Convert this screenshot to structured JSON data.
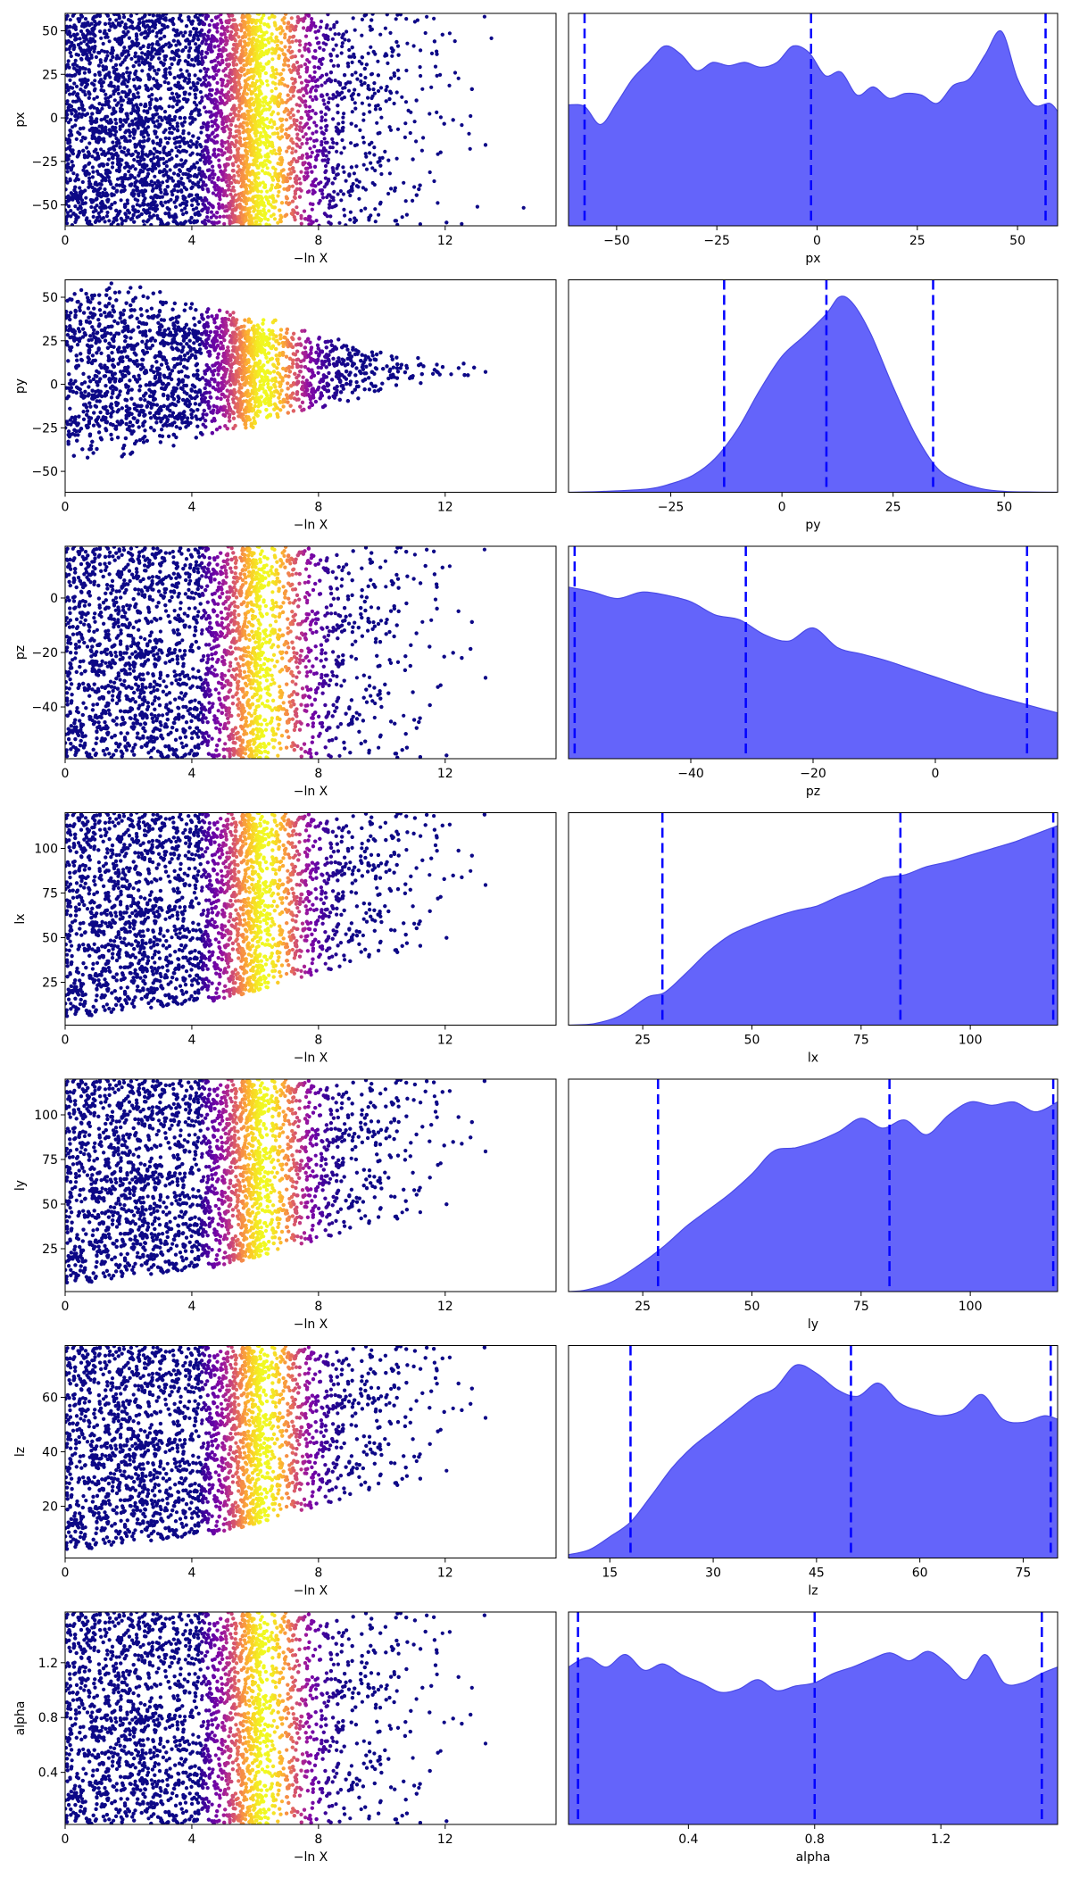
{
  "figure": {
    "colors": {
      "kde_fill": "#6464fa",
      "kde_line": "#4a4ae6",
      "quantile_line": "#0000ff",
      "scatter_low": "#0d0887",
      "scatter_high": "#f0f921"
    },
    "colormap": "plasma"
  },
  "chart_data": [
    {
      "type": "scatter",
      "param": "px",
      "xlabel": "−ln X",
      "ylabel": "px",
      "xlim": [
        0,
        15.5
      ],
      "ylim": [
        -62,
        60
      ],
      "xticks": [
        0,
        4,
        8,
        12
      ],
      "yticks": [
        -50,
        -25,
        0,
        25,
        50
      ],
      "shape": "uniform",
      "grid": false
    },
    {
      "type": "area",
      "param": "px",
      "xlabel": "px",
      "xlim": [
        -62,
        60
      ],
      "xticks": [
        -50,
        -25,
        0,
        25,
        50
      ],
      "ylim": [
        0,
        1.3
      ],
      "x": [
        -62,
        -58,
        -54,
        -50,
        -46,
        -42,
        -38,
        -34,
        -30,
        -26,
        -22,
        -18,
        -14,
        -10,
        -6,
        -2,
        2,
        6,
        10,
        14,
        18,
        22,
        26,
        30,
        34,
        38,
        42,
        46,
        50,
        54,
        58,
        60
      ],
      "values": [
        0.74,
        0.73,
        0.62,
        0.75,
        0.9,
        1.0,
        1.1,
        1.05,
        0.95,
        1.0,
        0.98,
        1.0,
        0.97,
        1.0,
        1.1,
        1.06,
        0.92,
        0.94,
        0.8,
        0.85,
        0.78,
        0.81,
        0.8,
        0.75,
        0.86,
        0.9,
        1.05,
        1.19,
        0.9,
        0.74,
        0.75,
        0.7
      ],
      "quantiles": [
        -58,
        -1.5,
        57
      ],
      "grid": false
    },
    {
      "type": "scatter",
      "param": "py",
      "xlabel": "−ln X",
      "ylabel": "py",
      "xlim": [
        0,
        15.5
      ],
      "ylim": [
        -62,
        60
      ],
      "xticks": [
        0,
        4,
        8,
        12
      ],
      "yticks": [
        -50,
        -25,
        0,
        25,
        50
      ],
      "shape": "funnel",
      "center": 8,
      "grid": false
    },
    {
      "type": "area",
      "param": "py",
      "xlabel": "py",
      "xlim": [
        -48,
        62
      ],
      "xticks": [
        -25,
        0,
        25,
        50
      ],
      "ylim": [
        0,
        1.25
      ],
      "x": [
        -48,
        -40,
        -30,
        -25,
        -20,
        -15,
        -10,
        -5,
        0,
        5,
        10,
        13,
        16,
        20,
        25,
        30,
        35,
        40,
        45,
        50,
        55,
        62
      ],
      "values": [
        0,
        0.005,
        0.02,
        0.05,
        0.1,
        0.2,
        0.37,
        0.6,
        0.8,
        0.92,
        1.05,
        1.15,
        1.11,
        0.93,
        0.62,
        0.34,
        0.14,
        0.06,
        0.02,
        0.005,
        0.002,
        0
      ],
      "quantiles": [
        -13,
        10,
        34
      ],
      "grid": false
    },
    {
      "type": "scatter",
      "param": "pz",
      "xlabel": "−ln X",
      "ylabel": "pz",
      "xlim": [
        0,
        15.5
      ],
      "ylim": [
        -59,
        19
      ],
      "xticks": [
        0,
        4,
        8,
        12
      ],
      "yticks": [
        -40,
        -20,
        0
      ],
      "shape": "uniform",
      "grid": false
    },
    {
      "type": "area",
      "param": "pz",
      "xlabel": "pz",
      "xlim": [
        -60,
        20
      ],
      "xticks": [
        -40,
        -20,
        0
      ],
      "ylim": [
        0,
        1.3
      ],
      "x": [
        -60,
        -56,
        -52,
        -48,
        -44,
        -40,
        -36,
        -32,
        -28,
        -24,
        -20,
        -16,
        -12,
        -8,
        -4,
        0,
        4,
        8,
        12,
        16,
        20
      ],
      "values": [
        1.05,
        1.02,
        0.98,
        1.02,
        1.0,
        0.96,
        0.88,
        0.85,
        0.76,
        0.72,
        0.8,
        0.68,
        0.64,
        0.6,
        0.55,
        0.5,
        0.45,
        0.4,
        0.36,
        0.32,
        0.28
      ],
      "quantiles": [
        -59,
        -31,
        15
      ],
      "grid": false
    },
    {
      "type": "scatter",
      "param": "lx",
      "xlabel": "−ln X",
      "ylabel": "lx",
      "xlim": [
        0,
        15.5
      ],
      "ylim": [
        1,
        120
      ],
      "xticks": [
        0,
        4,
        8,
        12
      ],
      "yticks": [
        25,
        50,
        75,
        100
      ],
      "shape": "floor",
      "grid": false
    },
    {
      "type": "area",
      "param": "lx",
      "xlabel": "lx",
      "xlim": [
        8,
        120
      ],
      "xticks": [
        25,
        50,
        75,
        100
      ],
      "ylim": [
        0,
        1.3
      ],
      "x": [
        8,
        14,
        20,
        26,
        30,
        35,
        40,
        45,
        50,
        55,
        60,
        65,
        70,
        75,
        80,
        85,
        90,
        95,
        100,
        105,
        110,
        115,
        120
      ],
      "values": [
        0.0,
        0.01,
        0.06,
        0.17,
        0.2,
        0.32,
        0.45,
        0.55,
        0.61,
        0.66,
        0.7,
        0.73,
        0.79,
        0.84,
        0.9,
        0.92,
        0.97,
        1.0,
        1.04,
        1.08,
        1.12,
        1.17,
        1.22
      ],
      "quantiles": [
        29.5,
        84,
        119
      ],
      "grid": false
    },
    {
      "type": "scatter",
      "param": "ly",
      "xlabel": "−ln X",
      "ylabel": "ly",
      "xlim": [
        0,
        15.5
      ],
      "ylim": [
        1,
        120
      ],
      "xticks": [
        0,
        4,
        8,
        12
      ],
      "yticks": [
        25,
        50,
        75,
        100
      ],
      "shape": "floor",
      "grid": false
    },
    {
      "type": "area",
      "param": "ly",
      "xlabel": "ly",
      "xlim": [
        8,
        120
      ],
      "xticks": [
        25,
        50,
        75,
        100
      ],
      "ylim": [
        0,
        1.3
      ],
      "x": [
        8,
        12,
        18,
        24,
        30,
        35,
        40,
        45,
        50,
        55,
        60,
        65,
        70,
        75,
        80,
        85,
        90,
        95,
        100,
        105,
        110,
        115,
        120
      ],
      "values": [
        0.0,
        0.01,
        0.06,
        0.16,
        0.28,
        0.4,
        0.5,
        0.6,
        0.72,
        0.86,
        0.88,
        0.92,
        0.98,
        1.06,
        1.0,
        1.05,
        0.96,
        1.08,
        1.16,
        1.14,
        1.16,
        1.1,
        1.16
      ],
      "quantiles": [
        28.5,
        81.5,
        119
      ],
      "grid": false
    },
    {
      "type": "scatter",
      "param": "lz",
      "xlabel": "−ln X",
      "ylabel": "lz",
      "xlim": [
        0,
        15.5
      ],
      "ylim": [
        1,
        79
      ],
      "xticks": [
        0,
        4,
        8,
        12
      ],
      "yticks": [
        20,
        40,
        60
      ],
      "shape": "floor",
      "grid": false
    },
    {
      "type": "area",
      "param": "lz",
      "xlabel": "lz",
      "xlim": [
        9,
        80
      ],
      "xticks": [
        15,
        30,
        45,
        60,
        75
      ],
      "ylim": [
        0,
        1.3
      ],
      "x": [
        9,
        12,
        15,
        18,
        21,
        24,
        27,
        30,
        33,
        36,
        39,
        42,
        45,
        48,
        51,
        54,
        57,
        60,
        63,
        66,
        69,
        72,
        75,
        78,
        80
      ],
      "values": [
        0.02,
        0.05,
        0.13,
        0.22,
        0.38,
        0.55,
        0.68,
        0.78,
        0.88,
        0.98,
        1.04,
        1.18,
        1.13,
        1.03,
        0.99,
        1.07,
        0.95,
        0.9,
        0.87,
        0.9,
        1.0,
        0.85,
        0.83,
        0.87,
        0.85
      ],
      "quantiles": [
        18,
        50,
        79
      ],
      "grid": false
    },
    {
      "type": "scatter",
      "param": "alpha",
      "xlabel": "−ln X",
      "ylabel": "alpha",
      "xlim": [
        0,
        15.5
      ],
      "ylim": [
        0.02,
        1.57
      ],
      "xticks": [
        0,
        4,
        8,
        12
      ],
      "yticks": [
        0.4,
        0.8,
        1.2
      ],
      "shape": "uniform",
      "grid": false
    },
    {
      "type": "area",
      "param": "alpha",
      "xlabel": "alpha",
      "xlim": [
        0.02,
        1.57
      ],
      "xticks": [
        0.4,
        0.8,
        1.2
      ],
      "ylim": [
        0,
        1.35
      ],
      "x": [
        0.02,
        0.08,
        0.14,
        0.2,
        0.26,
        0.32,
        0.38,
        0.44,
        0.5,
        0.56,
        0.62,
        0.68,
        0.74,
        0.8,
        0.86,
        0.92,
        0.98,
        1.04,
        1.1,
        1.16,
        1.22,
        1.28,
        1.34,
        1.4,
        1.46,
        1.52,
        1.57
      ],
      "values": [
        1.0,
        1.06,
        1.0,
        1.08,
        0.98,
        1.02,
        0.95,
        0.9,
        0.84,
        0.86,
        0.92,
        0.85,
        0.88,
        0.9,
        0.96,
        1.0,
        1.05,
        1.09,
        1.04,
        1.1,
        1.02,
        0.92,
        1.08,
        0.9,
        0.9,
        0.96,
        1.0
      ],
      "quantiles": [
        0.05,
        0.8,
        1.52
      ],
      "grid": false
    }
  ]
}
